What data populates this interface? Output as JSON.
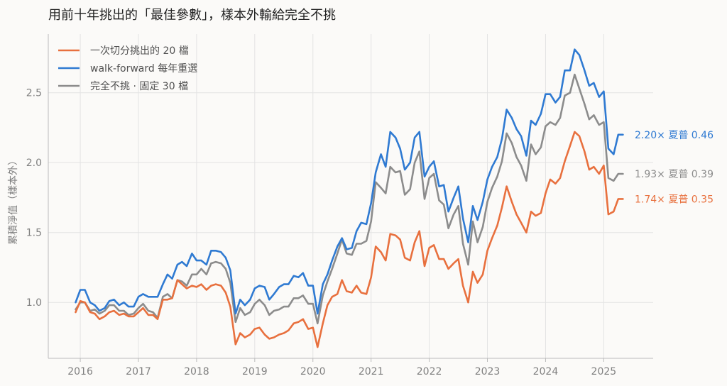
{
  "chart_data": {
    "type": "line",
    "title": "用前十年挑出的「最佳參數」，樣本外輸給完全不挑",
    "xlabel": "",
    "ylabel": "累積淨值（樣本外）",
    "xlim": [
      2015.45,
      2025.85
    ],
    "ylim": [
      0.6,
      2.92
    ],
    "yticks": [
      1.0,
      1.5,
      2.0,
      2.5
    ],
    "ytick_labels": [
      "1.0",
      "1.5",
      "2.0",
      "2.5"
    ],
    "xticks": [
      2016,
      2017,
      2018,
      2019,
      2020,
      2021,
      2022,
      2023,
      2024,
      2025
    ],
    "xtick_labels": [
      "2016",
      "2017",
      "2018",
      "2019",
      "2020",
      "2021",
      "2022",
      "2023",
      "2024",
      "2025"
    ],
    "grid": true,
    "legend_position": "top-left",
    "x": [
      2015.92,
      2016.0,
      2016.08,
      2016.17,
      2016.25,
      2016.33,
      2016.42,
      2016.5,
      2016.58,
      2016.67,
      2016.75,
      2016.83,
      2016.92,
      2017.0,
      2017.08,
      2017.17,
      2017.25,
      2017.33,
      2017.42,
      2017.5,
      2017.58,
      2017.67,
      2017.75,
      2017.83,
      2017.92,
      2018.0,
      2018.08,
      2018.17,
      2018.25,
      2018.33,
      2018.42,
      2018.5,
      2018.58,
      2018.67,
      2018.75,
      2018.83,
      2018.92,
      2019.0,
      2019.08,
      2019.17,
      2019.25,
      2019.33,
      2019.42,
      2019.5,
      2019.58,
      2019.67,
      2019.75,
      2019.83,
      2019.92,
      2020.0,
      2020.08,
      2020.17,
      2020.25,
      2020.33,
      2020.42,
      2020.5,
      2020.58,
      2020.67,
      2020.75,
      2020.83,
      2020.92,
      2021.0,
      2021.08,
      2021.17,
      2021.25,
      2021.33,
      2021.42,
      2021.5,
      2021.58,
      2021.67,
      2021.75,
      2021.83,
      2021.92,
      2022.0,
      2022.08,
      2022.17,
      2022.25,
      2022.33,
      2022.42,
      2022.5,
      2022.58,
      2022.67,
      2022.75,
      2022.83,
      2022.92,
      2023.0,
      2023.08,
      2023.17,
      2023.25,
      2023.33,
      2023.42,
      2023.5,
      2023.58,
      2023.67,
      2023.75,
      2023.83,
      2023.92,
      2024.0,
      2024.08,
      2024.17,
      2024.25,
      2024.33,
      2024.42,
      2024.5,
      2024.58,
      2024.67,
      2024.75,
      2024.83,
      2024.92,
      2025.0,
      2025.08,
      2025.17,
      2025.25,
      2025.33
    ],
    "series": [
      {
        "name": "一次切分挑出的 20 檔",
        "color": "#e8703e",
        "end_label": "1.74×  夏普 0.35",
        "values": [
          0.93,
          1.01,
          1.0,
          0.93,
          0.92,
          0.88,
          0.9,
          0.93,
          0.94,
          0.91,
          0.92,
          0.9,
          0.9,
          0.93,
          0.96,
          0.91,
          0.91,
          0.88,
          1.02,
          1.02,
          1.03,
          1.16,
          1.13,
          1.1,
          1.12,
          1.11,
          1.13,
          1.09,
          1.12,
          1.13,
          1.12,
          1.07,
          0.97,
          0.7,
          0.78,
          0.75,
          0.77,
          0.81,
          0.82,
          0.77,
          0.74,
          0.75,
          0.77,
          0.78,
          0.8,
          0.85,
          0.86,
          0.88,
          0.81,
          0.82,
          0.68,
          0.85,
          0.98,
          1.04,
          1.06,
          1.16,
          1.08,
          1.07,
          1.12,
          1.07,
          1.06,
          1.18,
          1.4,
          1.36,
          1.3,
          1.49,
          1.48,
          1.45,
          1.32,
          1.3,
          1.43,
          1.51,
          1.26,
          1.39,
          1.41,
          1.31,
          1.31,
          1.24,
          1.28,
          1.31,
          1.12,
          1.0,
          1.22,
          1.14,
          1.2,
          1.37,
          1.46,
          1.55,
          1.68,
          1.83,
          1.72,
          1.63,
          1.57,
          1.5,
          1.65,
          1.62,
          1.64,
          1.78,
          1.88,
          1.85,
          1.89,
          2.01,
          2.12,
          2.22,
          2.19,
          2.08,
          1.95,
          1.97,
          1.92,
          1.98,
          1.63,
          1.65,
          1.74,
          1.74
        ]
      },
      {
        "name": "walk-forward 每年重選",
        "color": "#2f7ad2",
        "end_label": "2.20×  夏普 0.46",
        "values": [
          1.0,
          1.09,
          1.09,
          1.0,
          0.98,
          0.94,
          0.96,
          1.01,
          1.02,
          0.98,
          1.0,
          0.97,
          0.97,
          1.04,
          1.06,
          1.04,
          1.04,
          1.04,
          1.13,
          1.2,
          1.17,
          1.27,
          1.29,
          1.26,
          1.35,
          1.3,
          1.3,
          1.27,
          1.37,
          1.37,
          1.36,
          1.32,
          1.23,
          0.92,
          1.02,
          0.98,
          1.02,
          1.1,
          1.12,
          1.11,
          1.02,
          1.06,
          1.11,
          1.13,
          1.13,
          1.19,
          1.18,
          1.21,
          1.12,
          1.12,
          0.92,
          1.13,
          1.2,
          1.3,
          1.4,
          1.46,
          1.38,
          1.39,
          1.51,
          1.57,
          1.56,
          1.71,
          1.93,
          2.06,
          1.97,
          2.22,
          2.18,
          2.1,
          1.95,
          2.0,
          2.18,
          2.22,
          1.9,
          1.97,
          2.01,
          1.83,
          1.84,
          1.65,
          1.75,
          1.83,
          1.6,
          1.43,
          1.69,
          1.59,
          1.72,
          1.88,
          1.97,
          2.04,
          2.17,
          2.38,
          2.32,
          2.24,
          2.19,
          2.05,
          2.3,
          2.27,
          2.35,
          2.49,
          2.49,
          2.43,
          2.47,
          2.66,
          2.66,
          2.81,
          2.77,
          2.66,
          2.55,
          2.57,
          2.47,
          2.51,
          2.1,
          2.06,
          2.2,
          2.2
        ]
      },
      {
        "name": "完全不挑 · 固定 30 檔",
        "color": "#8c8c8c",
        "end_label": "1.93×  夏普 0.39",
        "values": [
          0.95,
          1.0,
          1.0,
          0.94,
          0.95,
          0.92,
          0.94,
          0.98,
          0.98,
          0.94,
          0.94,
          0.91,
          0.92,
          0.96,
          0.99,
          0.94,
          0.93,
          0.89,
          1.04,
          1.06,
          1.03,
          1.16,
          1.15,
          1.12,
          1.2,
          1.2,
          1.24,
          1.2,
          1.28,
          1.29,
          1.28,
          1.24,
          1.14,
          0.86,
          0.96,
          0.91,
          0.93,
          0.99,
          1.02,
          0.98,
          0.91,
          0.94,
          0.95,
          0.97,
          0.97,
          1.03,
          1.03,
          1.05,
          0.99,
          0.99,
          0.85,
          1.05,
          1.15,
          1.24,
          1.35,
          1.45,
          1.35,
          1.34,
          1.42,
          1.42,
          1.44,
          1.58,
          1.86,
          1.82,
          1.78,
          1.97,
          1.93,
          1.94,
          1.77,
          1.81,
          2.0,
          2.08,
          1.74,
          1.89,
          1.92,
          1.73,
          1.7,
          1.53,
          1.63,
          1.69,
          1.42,
          1.27,
          1.58,
          1.43,
          1.54,
          1.72,
          1.82,
          1.9,
          2.01,
          2.21,
          2.14,
          2.04,
          1.98,
          1.87,
          2.13,
          2.06,
          2.11,
          2.26,
          2.29,
          2.27,
          2.32,
          2.48,
          2.5,
          2.63,
          2.53,
          2.42,
          2.31,
          2.34,
          2.27,
          2.29,
          1.89,
          1.87,
          1.92,
          1.92
        ]
      }
    ]
  }
}
